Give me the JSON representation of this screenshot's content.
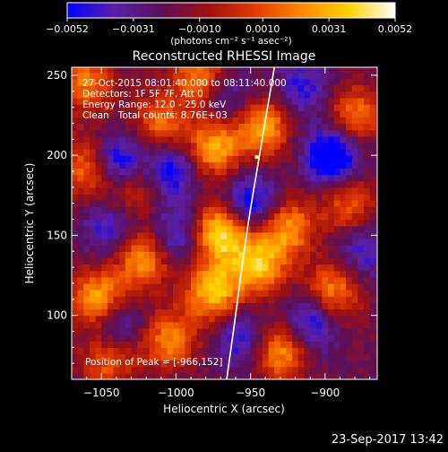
{
  "chart_data": {
    "type": "heatmap",
    "title": "Reconstructed RHESSI Image",
    "xlabel": "Heliocentric X (arcsec)",
    "ylabel": "Heliocentric Y (arcsec)",
    "xlim": [
      -1070,
      -865
    ],
    "ylim": [
      60,
      255
    ],
    "x_ticks": [
      -1050,
      -1000,
      -950,
      -900
    ],
    "y_ticks": [
      100,
      150,
      200,
      250
    ],
    "colorbar": {
      "unit_label": "(photons cm⁻² s⁻¹ asec⁻²)",
      "range": [
        -0.0052,
        0.0052
      ],
      "tick_values": [
        -0.0052,
        -0.0031,
        -0.001,
        0.001,
        0.0031,
        0.0052
      ],
      "tick_labels": [
        "−0.0052",
        "−0.0031",
        "−0.0010",
        "0.0010",
        "0.0031",
        "0.0052"
      ],
      "stops": [
        "#0000ff",
        "#5a1fa8",
        "#5a1058",
        "#a01010",
        "#e03a00",
        "#ff8800",
        "#ffd200",
        "#ffffff"
      ]
    },
    "annotations": [
      "27-Oct-2015 08:01:40.000 to 08:11:40.000",
      "Detectors: 1F 5F 7F, Att 0",
      "Energy Range: 12.0 - 25.0 keV",
      "Clean   Total counts: 8.76E+03"
    ],
    "peak_label": "Position of Peak = [-966,152]",
    "sources": [
      {
        "x": -970,
        "y": 152,
        "value": 0.0052
      },
      {
        "x": -1052,
        "y": 110,
        "value": 0.0043
      },
      {
        "x": -1022,
        "y": 135,
        "value": 0.0036
      },
      {
        "x": -975,
        "y": 205,
        "value": 0.004
      },
      {
        "x": -942,
        "y": 218,
        "value": 0.0038
      },
      {
        "x": -985,
        "y": 250,
        "value": 0.003
      },
      {
        "x": -1060,
        "y": 245,
        "value": 0.0028
      },
      {
        "x": -1058,
        "y": 193,
        "value": 0.0034
      },
      {
        "x": -1010,
        "y": 220,
        "value": 0.0026
      },
      {
        "x": -925,
        "y": 155,
        "value": 0.0034
      },
      {
        "x": -945,
        "y": 132,
        "value": 0.0042
      },
      {
        "x": -975,
        "y": 115,
        "value": 0.0044
      },
      {
        "x": -930,
        "y": 78,
        "value": 0.0038
      },
      {
        "x": -895,
        "y": 115,
        "value": 0.0032
      },
      {
        "x": -880,
        "y": 225,
        "value": 0.0028
      },
      {
        "x": -1030,
        "y": 180,
        "value": 0.0022
      },
      {
        "x": -1005,
        "y": 85,
        "value": 0.003
      },
      {
        "x": -885,
        "y": 170,
        "value": 0.0022
      },
      {
        "x": -1045,
        "y": 72,
        "value": 0.0024
      },
      {
        "x": -1040,
        "y": 195,
        "value": -0.0046
      },
      {
        "x": -1002,
        "y": 192,
        "value": -0.0032
      },
      {
        "x": -950,
        "y": 170,
        "value": -0.0036
      },
      {
        "x": -895,
        "y": 200,
        "value": -0.0048
      },
      {
        "x": -1045,
        "y": 155,
        "value": -0.0022
      },
      {
        "x": -1000,
        "y": 150,
        "value": -0.0024
      },
      {
        "x": -1040,
        "y": 95,
        "value": -0.0028
      },
      {
        "x": -910,
        "y": 95,
        "value": -0.0034
      },
      {
        "x": -955,
        "y": 85,
        "value": -0.0026
      },
      {
        "x": -915,
        "y": 242,
        "value": -0.0022
      },
      {
        "x": -965,
        "y": 235,
        "value": -0.0018
      },
      {
        "x": -875,
        "y": 140,
        "value": -0.002
      }
    ],
    "limb_curve": [
      [
        -966,
        60
      ],
      [
        -960,
        100
      ],
      [
        -953,
        150
      ],
      [
        -944,
        200
      ],
      [
        -934,
        255
      ]
    ]
  },
  "footer_timestamp": "23-Sep-2017 13:42",
  "colors": {
    "background": "#000000",
    "text": "#ffffff",
    "limb": "#ffffff",
    "peak_marker": "#ffff66"
  }
}
